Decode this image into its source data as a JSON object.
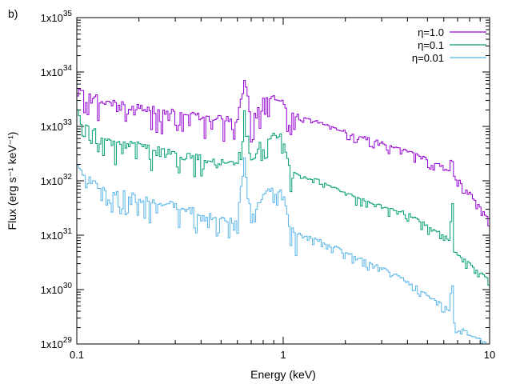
{
  "chart_data": {
    "type": "line",
    "panel_label": "b)",
    "xlabel": "Energy (keV)",
    "ylabel": "Flux (erg s⁻¹ keV⁻¹)",
    "xscale": "log",
    "yscale": "log",
    "xlim": [
      0.1,
      10
    ],
    "ylim": [
      1e+29,
      1e+35
    ],
    "x_ticks": [
      {
        "value": 0.1,
        "label": "0.1"
      },
      {
        "value": 1,
        "label": "1"
      },
      {
        "value": 10,
        "label": "10"
      }
    ],
    "y_ticks": [
      {
        "value": 1e+29,
        "base": "1x10",
        "exp": "29"
      },
      {
        "value": 1e+30,
        "base": "1x10",
        "exp": "30"
      },
      {
        "value": 1e+31,
        "base": "1x10",
        "exp": "31"
      },
      {
        "value": 1e+32,
        "base": "1x10",
        "exp": "32"
      },
      {
        "value": 1e+33,
        "base": "1x10",
        "exp": "33"
      },
      {
        "value": 1e+34,
        "base": "1x10",
        "exp": "34"
      },
      {
        "value": 1e+35,
        "base": "1x10",
        "exp": "35"
      }
    ],
    "legend_position": "top-right",
    "series_style": "steps",
    "series": [
      {
        "name": "η=1.0",
        "color": "#9400d3",
        "points": [
          [
            0.1,
            6e+33
          ],
          [
            0.13,
            3e+33
          ],
          [
            0.2,
            2.2e+33
          ],
          [
            0.3,
            1.8e+33
          ],
          [
            0.4,
            1.5e+33
          ],
          [
            0.5,
            1.4e+33
          ],
          [
            0.6,
            1.35e+33
          ],
          [
            0.65,
            7e+33
          ],
          [
            0.7,
            1.4e+33
          ],
          [
            0.8,
            3e+33
          ],
          [
            0.9,
            3.2e+33
          ],
          [
            1.0,
            3e+33
          ],
          [
            1.1,
            1.6e+33
          ],
          [
            1.5,
            1.2e+33
          ],
          [
            2.0,
            8e+32
          ],
          [
            3.0,
            5e+32
          ],
          [
            4.0,
            3.5e+32
          ],
          [
            5.0,
            2.5e+32
          ],
          [
            6.0,
            1.8e+32
          ],
          [
            6.4,
            1.5e+32
          ],
          [
            6.6,
            4e+32
          ],
          [
            6.7,
            1.2e+32
          ],
          [
            7.0,
            1.1e+32
          ],
          [
            8.0,
            6e+31
          ],
          [
            10.0,
            1.8e+31
          ]
        ]
      },
      {
        "name": "η=0.1",
        "color": "#009e73",
        "points": [
          [
            0.1,
            2e+33
          ],
          [
            0.13,
            6e+32
          ],
          [
            0.2,
            4.5e+32
          ],
          [
            0.3,
            3.2e+32
          ],
          [
            0.4,
            2.6e+32
          ],
          [
            0.5,
            2.2e+32
          ],
          [
            0.6,
            2e+32
          ],
          [
            0.65,
            1.8e+33
          ],
          [
            0.7,
            2.2e+32
          ],
          [
            0.8,
            6e+32
          ],
          [
            0.9,
            7e+32
          ],
          [
            1.0,
            6e+32
          ],
          [
            1.1,
            1.3e+32
          ],
          [
            1.5,
            1e+32
          ],
          [
            2.0,
            6e+31
          ],
          [
            3.0,
            3.5e+31
          ],
          [
            4.0,
            2.5e+31
          ],
          [
            5.0,
            1.5e+31
          ],
          [
            6.0,
            1e+31
          ],
          [
            6.4,
            8e+30
          ],
          [
            6.6,
            6e+31
          ],
          [
            6.7,
            5e+30
          ],
          [
            7.0,
            4.5e+30
          ],
          [
            8.0,
            3e+30
          ],
          [
            10.0,
            1.5e+30
          ]
        ]
      },
      {
        "name": "η=0.01",
        "color": "#56b4e9",
        "points": [
          [
            0.1,
            1.8e+32
          ],
          [
            0.13,
            7e+31
          ],
          [
            0.2,
            5e+31
          ],
          [
            0.3,
            3.5e+31
          ],
          [
            0.4,
            2.5e+31
          ],
          [
            0.5,
            2e+31
          ],
          [
            0.6,
            1.8e+31
          ],
          [
            0.65,
            2.5e+32
          ],
          [
            0.7,
            1.8e+31
          ],
          [
            0.8,
            6e+31
          ],
          [
            0.9,
            7e+31
          ],
          [
            1.0,
            6e+31
          ],
          [
            1.1,
            1.2e+31
          ],
          [
            1.5,
            8e+30
          ],
          [
            2.0,
            5e+30
          ],
          [
            3.0,
            2.5e+30
          ],
          [
            4.0,
            1.5e+30
          ],
          [
            5.0,
            8e+29
          ],
          [
            6.0,
            5e+29
          ],
          [
            6.4,
            4e+29
          ],
          [
            6.6,
            1.8e+30
          ],
          [
            6.7,
            2.5e+29
          ],
          [
            7.0,
            2.2e+29
          ],
          [
            8.0,
            1.5e+29
          ],
          [
            10.0,
            1e+29
          ]
        ]
      }
    ]
  }
}
